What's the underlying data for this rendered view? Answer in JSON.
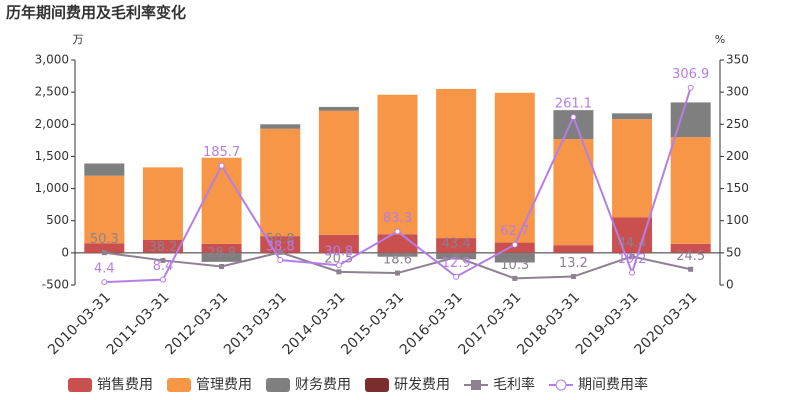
{
  "chart_data": {
    "type": "bar-line",
    "title": "历年期间费用及毛利率变化",
    "y_unit": "万",
    "y2_unit": "%",
    "categories": [
      "2010-03-31",
      "2011-03-31",
      "2012-03-31",
      "2013-03-31",
      "2014-03-31",
      "2015-03-31",
      "2016-03-31",
      "2017-03-31",
      "2018-03-31",
      "2019-03-31",
      "2020-03-31"
    ],
    "ylim": [
      -500,
      3000
    ],
    "yticks": [
      -500,
      0,
      500,
      {
        "value": 1000,
        "label": "1,000"
      },
      {
        "value": 1500,
        "label": "1,500"
      },
      {
        "value": 2000,
        "label": "2,000"
      },
      {
        "value": 2500,
        "label": "2,500"
      },
      {
        "value": 3000,
        "label": "3,000"
      }
    ],
    "y2lim": [
      0,
      350
    ],
    "y2ticks": [
      0,
      50,
      100,
      150,
      200,
      250,
      300,
      350
    ],
    "series": [
      {
        "name": "销售费用",
        "kind": "bar",
        "color": "#c9504f",
        "values": [
          150,
          200,
          140,
          260,
          280,
          290,
          230,
          160,
          120,
          550,
          140
        ]
      },
      {
        "name": "管理费用",
        "kind": "bar",
        "color": "#f79646",
        "values": [
          1050,
          1130,
          1340,
          1670,
          1930,
          2170,
          2320,
          2330,
          1650,
          1530,
          1660
        ]
      },
      {
        "name": "财务费用",
        "kind": "bar",
        "color": "#7f7f7f",
        "values": [
          190,
          0,
          -140,
          70,
          60,
          -60,
          -100,
          -150,
          450,
          90,
          540
        ]
      },
      {
        "name": "研发费用",
        "kind": "bar",
        "color": "#7b2c2c",
        "values": [
          0,
          0,
          0,
          0,
          0,
          0,
          0,
          0,
          0,
          0,
          0
        ]
      },
      {
        "name": "毛利率",
        "kind": "line",
        "axis": "y2",
        "marker": "square",
        "color": "#8e8090",
        "values": [
          50.3,
          38.2,
          28.8,
          50.8,
          20.5,
          18.6,
          43.4,
          10.3,
          13.2,
          44.4,
          24.5
        ]
      },
      {
        "name": "期间费用率",
        "kind": "line",
        "axis": "y2",
        "marker": "circle",
        "color": "#b57ee6",
        "values": [
          4.4,
          8.4,
          185.7,
          38.8,
          30.8,
          83.3,
          12.9,
          62.7,
          261.1,
          19.2,
          306.9
        ]
      }
    ]
  }
}
